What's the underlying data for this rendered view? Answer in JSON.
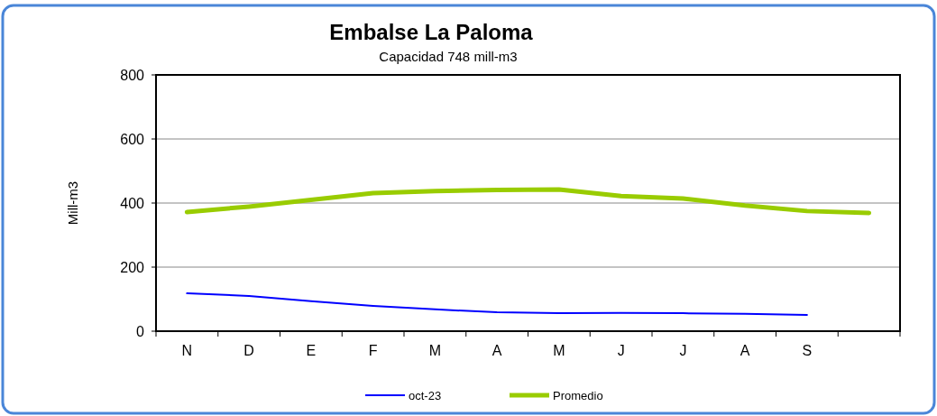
{
  "chart_data": {
    "type": "line",
    "title": "Embalse La Paloma",
    "subtitle": "Capacidad 748 mill-m3",
    "ylabel": "Mill-m3",
    "categories": [
      "N",
      "D",
      "E",
      "F",
      "M",
      "A",
      "M",
      "J",
      "J",
      "A",
      "S",
      null
    ],
    "series": [
      {
        "name": "oct-23",
        "color": "#0000ff",
        "values": [
          118,
          110,
          94,
          79,
          68,
          59,
          56,
          57,
          56,
          54,
          51,
          null
        ]
      },
      {
        "name": "Promedio",
        "color": "#99cc00",
        "values": [
          372,
          389,
          410,
          431,
          437,
          441,
          442,
          422,
          414,
          392,
          375,
          369
        ]
      }
    ],
    "ylim": [
      0,
      800
    ],
    "yticks": [
      0,
      200,
      400,
      600,
      800
    ],
    "grid": "y",
    "legend": "bottom",
    "marker": "none",
    "line_style": "solid"
  }
}
